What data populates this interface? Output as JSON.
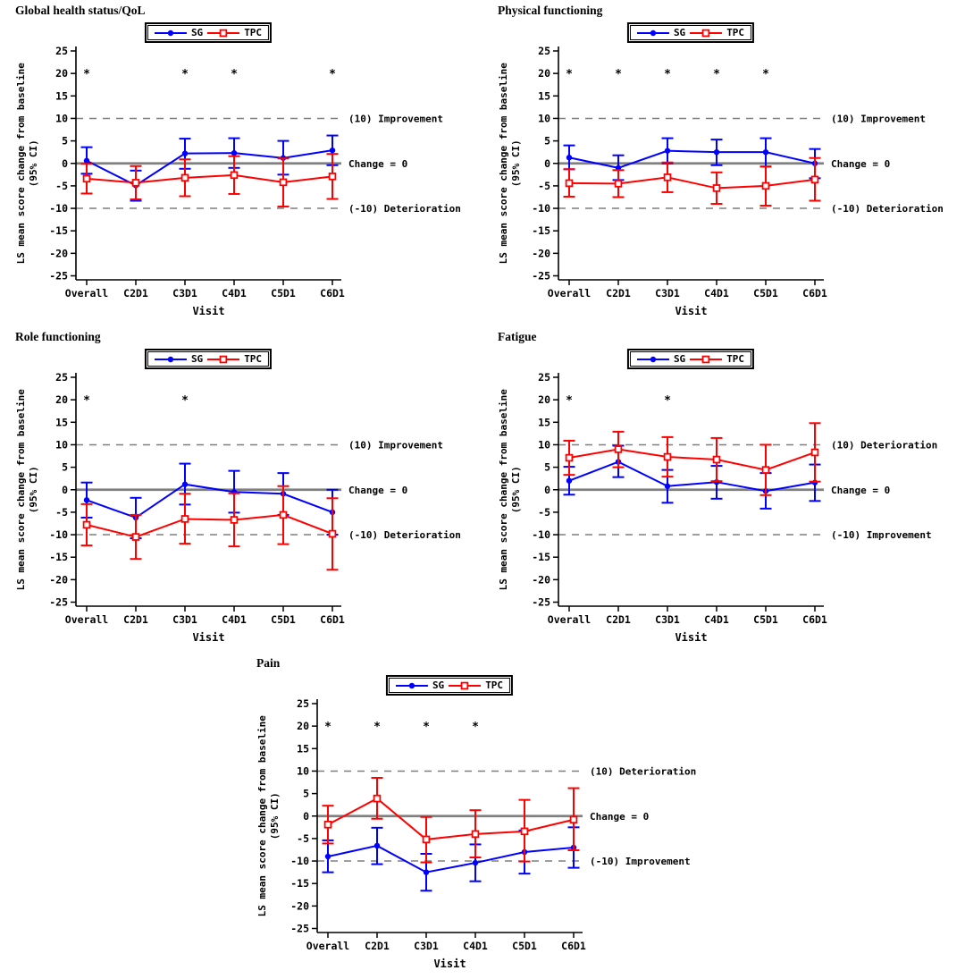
{
  "colors": {
    "sg": "#0000ff",
    "tpc": "#ff0000",
    "zero_line": "#808080",
    "ref_line": "#7f7f7f",
    "axis": "#000000"
  },
  "series_labels": {
    "sg": "SG",
    "tpc": "TPC"
  },
  "axis": {
    "yticks": [
      25,
      20,
      15,
      10,
      5,
      0,
      -5,
      -10,
      -15,
      -20,
      -25
    ],
    "ylim": [
      -25,
      25
    ],
    "xlabel": "Visit",
    "ylabel_line1": "LS mean score change from baseline",
    "ylabel_line2": "(95% CI)",
    "asterisk": "*",
    "asterisk_y": 20
  },
  "chart_data": [
    {
      "type": "line",
      "title": "Global health status/QoL",
      "categories": [
        "Overall",
        "C2D1",
        "C3D1",
        "C4D1",
        "C5D1",
        "C6D1"
      ],
      "xlabel": "Visit",
      "ylabel": "LS mean score change from baseline (95% CI)",
      "ylim": [
        -25,
        25
      ],
      "grid": false,
      "legend_position": "top",
      "significant_visits": [
        "Overall",
        "C3D1",
        "C4D1",
        "C6D1"
      ],
      "ref_lines": [
        {
          "y": 10,
          "style": "dashed",
          "label": "(10) Improvement"
        },
        {
          "y": 0,
          "style": "solid",
          "label": "Change = 0"
        },
        {
          "y": -10,
          "style": "dashed",
          "label": "(-10) Deterioration"
        }
      ],
      "series": [
        {
          "name": "SG",
          "color": "#0000ff",
          "marker": "filled-circle",
          "values": [
            0.6,
            -4.9,
            2.2,
            2.3,
            1.2,
            2.9
          ],
          "ci_low": [
            -2.3,
            -8.3,
            -1.2,
            -1.0,
            -2.5,
            -0.4
          ],
          "ci_high": [
            3.6,
            -1.6,
            5.5,
            5.6,
            5.0,
            6.2
          ]
        },
        {
          "name": "TPC",
          "color": "#ff0000",
          "marker": "open-square",
          "values": [
            -3.4,
            -4.3,
            -3.2,
            -2.6,
            -4.2,
            -2.9
          ],
          "ci_low": [
            -6.7,
            -8.0,
            -7.3,
            -6.8,
            -9.6,
            -7.9
          ],
          "ci_high": [
            -0.1,
            -0.6,
            0.9,
            1.6,
            1.1,
            2.1
          ]
        }
      ]
    },
    {
      "type": "line",
      "title": "Physical functioning",
      "categories": [
        "Overall",
        "C2D1",
        "C3D1",
        "C4D1",
        "C5D1",
        "C6D1"
      ],
      "xlabel": "Visit",
      "ylabel": "LS mean score change from baseline (95% CI)",
      "ylim": [
        -25,
        25
      ],
      "grid": false,
      "legend_position": "top",
      "significant_visits": [
        "Overall",
        "C2D1",
        "C3D1",
        "C4D1",
        "C5D1"
      ],
      "ref_lines": [
        {
          "y": 10,
          "style": "dashed",
          "label": "(10) Improvement"
        },
        {
          "y": 0,
          "style": "solid",
          "label": "Change = 0"
        },
        {
          "y": -10,
          "style": "dashed",
          "label": "(-10) Deterioration"
        }
      ],
      "series": [
        {
          "name": "SG",
          "color": "#0000ff",
          "marker": "filled-circle",
          "values": [
            1.3,
            -1.0,
            2.8,
            2.5,
            2.5,
            0.0
          ],
          "ci_low": [
            -1.3,
            -3.7,
            0.0,
            -0.4,
            -0.7,
            -3.3
          ],
          "ci_high": [
            4.0,
            1.8,
            5.6,
            5.3,
            5.6,
            3.2
          ]
        },
        {
          "name": "TPC",
          "color": "#ff0000",
          "marker": "open-square",
          "values": [
            -4.4,
            -4.5,
            -3.1,
            -5.5,
            -5.0,
            -3.6
          ],
          "ci_low": [
            -7.4,
            -7.5,
            -6.4,
            -9.0,
            -9.4,
            -8.3
          ],
          "ci_high": [
            -1.3,
            -1.5,
            0.2,
            -2.0,
            -0.7,
            1.2
          ]
        }
      ]
    },
    {
      "type": "line",
      "title": "Role functioning",
      "categories": [
        "Overall",
        "C2D1",
        "C3D1",
        "C4D1",
        "C5D1",
        "C6D1"
      ],
      "xlabel": "Visit",
      "ylabel": "LS mean score change from baseline (95% CI)",
      "ylim": [
        -25,
        25
      ],
      "grid": false,
      "legend_position": "top",
      "significant_visits": [
        "Overall",
        "C3D1"
      ],
      "ref_lines": [
        {
          "y": 10,
          "style": "dashed",
          "label": "(10) Improvement"
        },
        {
          "y": 0,
          "style": "solid",
          "label": "Change = 0"
        },
        {
          "y": -10,
          "style": "dashed",
          "label": "(-10) Deterioration"
        }
      ],
      "series": [
        {
          "name": "SG",
          "color": "#0000ff",
          "marker": "filled-circle",
          "values": [
            -2.3,
            -6.2,
            1.2,
            -0.5,
            -0.9,
            -5.0
          ],
          "ci_low": [
            -6.2,
            -10.8,
            -3.3,
            -5.1,
            -5.6,
            -10.0
          ],
          "ci_high": [
            1.6,
            -1.8,
            5.8,
            4.2,
            3.7,
            0.0
          ]
        },
        {
          "name": "TPC",
          "color": "#ff0000",
          "marker": "open-square",
          "values": [
            -7.8,
            -10.5,
            -6.5,
            -6.7,
            -5.6,
            -9.8
          ],
          "ci_low": [
            -12.4,
            -15.4,
            -12.0,
            -12.6,
            -12.1,
            -17.8
          ],
          "ci_high": [
            -3.2,
            -5.6,
            -0.9,
            -0.8,
            0.8,
            -1.9
          ]
        }
      ]
    },
    {
      "type": "line",
      "title": "Fatigue",
      "categories": [
        "Overall",
        "C2D1",
        "C3D1",
        "C4D1",
        "C5D1",
        "C6D1"
      ],
      "xlabel": "Visit",
      "ylabel": "LS mean score change from baseline (95% CI)",
      "ylim": [
        -25,
        25
      ],
      "grid": false,
      "legend_position": "top",
      "significant_visits": [
        "Overall",
        "C3D1"
      ],
      "ref_lines": [
        {
          "y": 10,
          "style": "dashed",
          "label": "(10) Deterioration"
        },
        {
          "y": 0,
          "style": "solid",
          "label": "Change = 0"
        },
        {
          "y": -10,
          "style": "dashed",
          "label": "(-10) Improvement"
        }
      ],
      "series": [
        {
          "name": "SG",
          "color": "#0000ff",
          "marker": "filled-circle",
          "values": [
            2.0,
            6.2,
            0.8,
            1.7,
            -0.3,
            1.6
          ],
          "ci_low": [
            -1.1,
            2.8,
            -2.9,
            -2.0,
            -4.2,
            -2.5
          ],
          "ci_high": [
            5.1,
            9.8,
            4.4,
            5.3,
            3.7,
            5.6
          ]
        },
        {
          "name": "TPC",
          "color": "#ff0000",
          "marker": "open-square",
          "values": [
            7.1,
            9.0,
            7.3,
            6.7,
            4.4,
            8.3
          ],
          "ci_low": [
            3.3,
            5.0,
            2.9,
            1.9,
            -1.2,
            1.8
          ],
          "ci_high": [
            10.9,
            12.9,
            11.7,
            11.5,
            10.0,
            14.8
          ]
        }
      ]
    },
    {
      "type": "line",
      "title": "Pain",
      "categories": [
        "Overall",
        "C2D1",
        "C3D1",
        "C4D1",
        "C5D1",
        "C6D1"
      ],
      "xlabel": "Visit",
      "ylabel": "LS mean score change from baseline (95% CI)",
      "ylim": [
        -25,
        25
      ],
      "grid": false,
      "legend_position": "top",
      "significant_visits": [
        "Overall",
        "C2D1",
        "C3D1",
        "C4D1"
      ],
      "ref_lines": [
        {
          "y": 10,
          "style": "dashed",
          "label": "(10) Deterioration"
        },
        {
          "y": 0,
          "style": "solid",
          "label": "Change = 0"
        },
        {
          "y": -10,
          "style": "dashed",
          "label": "(-10) Improvement"
        }
      ],
      "series": [
        {
          "name": "SG",
          "color": "#0000ff",
          "marker": "filled-circle",
          "values": [
            -9.0,
            -6.6,
            -12.5,
            -10.4,
            -8.0,
            -7.0
          ],
          "ci_low": [
            -12.5,
            -10.7,
            -16.6,
            -14.5,
            -12.8,
            -11.5
          ],
          "ci_high": [
            -5.4,
            -2.6,
            -8.4,
            -6.3,
            -3.2,
            -2.5
          ]
        },
        {
          "name": "TPC",
          "color": "#ff0000",
          "marker": "open-square",
          "values": [
            -1.9,
            3.9,
            -5.2,
            -4.0,
            -3.4,
            -0.8
          ],
          "ci_low": [
            -6.1,
            -0.6,
            -10.3,
            -9.2,
            -10.1,
            -7.6
          ],
          "ci_high": [
            2.3,
            8.5,
            -0.2,
            1.3,
            3.6,
            6.2
          ]
        }
      ]
    }
  ]
}
